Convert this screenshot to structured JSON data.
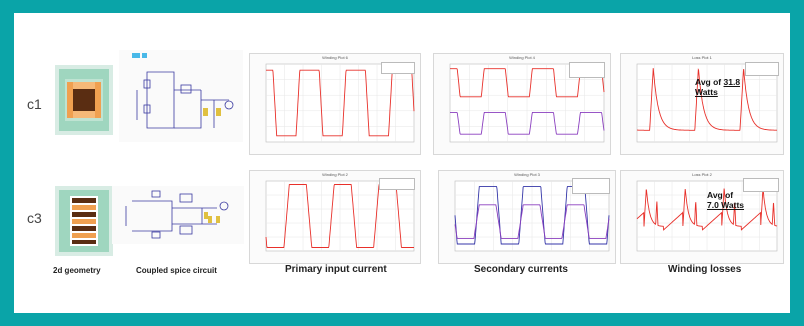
{
  "rows": [
    {
      "label": "c1"
    },
    {
      "label": "c3"
    }
  ],
  "captions": {
    "geometry": "2d geometry",
    "spice": "Coupled spice circuit",
    "primary": "Primary input current",
    "secondary": "Secondary currents",
    "losses": "Winding losses"
  },
  "plots": {
    "c1_primary_title": "Winding Plot 6",
    "c1_secondary_title": "Winding Plot 4",
    "c1_loss_title": "Loss Plot 1",
    "c3_primary_title": "Winding Plot 2",
    "c3_secondary_title": "Winding Plot 3",
    "c3_loss_title": "Loss Plot 2"
  },
  "annotations": {
    "c1_avg_prefix": "Avg of ",
    "c1_avg_value": "31.8",
    "c1_avg_unit": "Watts",
    "c3_avg_prefix": "Avg of",
    "c3_avg_value": "7.0 Watts"
  },
  "colors": {
    "border": "#0aa4a8",
    "trace_red": "#e8302a",
    "trace_purple": "#8a3fbf",
    "trace_blue": "#3436a8",
    "core_green": "#8fcfb4",
    "winding_orange": "#f0a050",
    "winding_brown": "#5a2d12"
  }
}
